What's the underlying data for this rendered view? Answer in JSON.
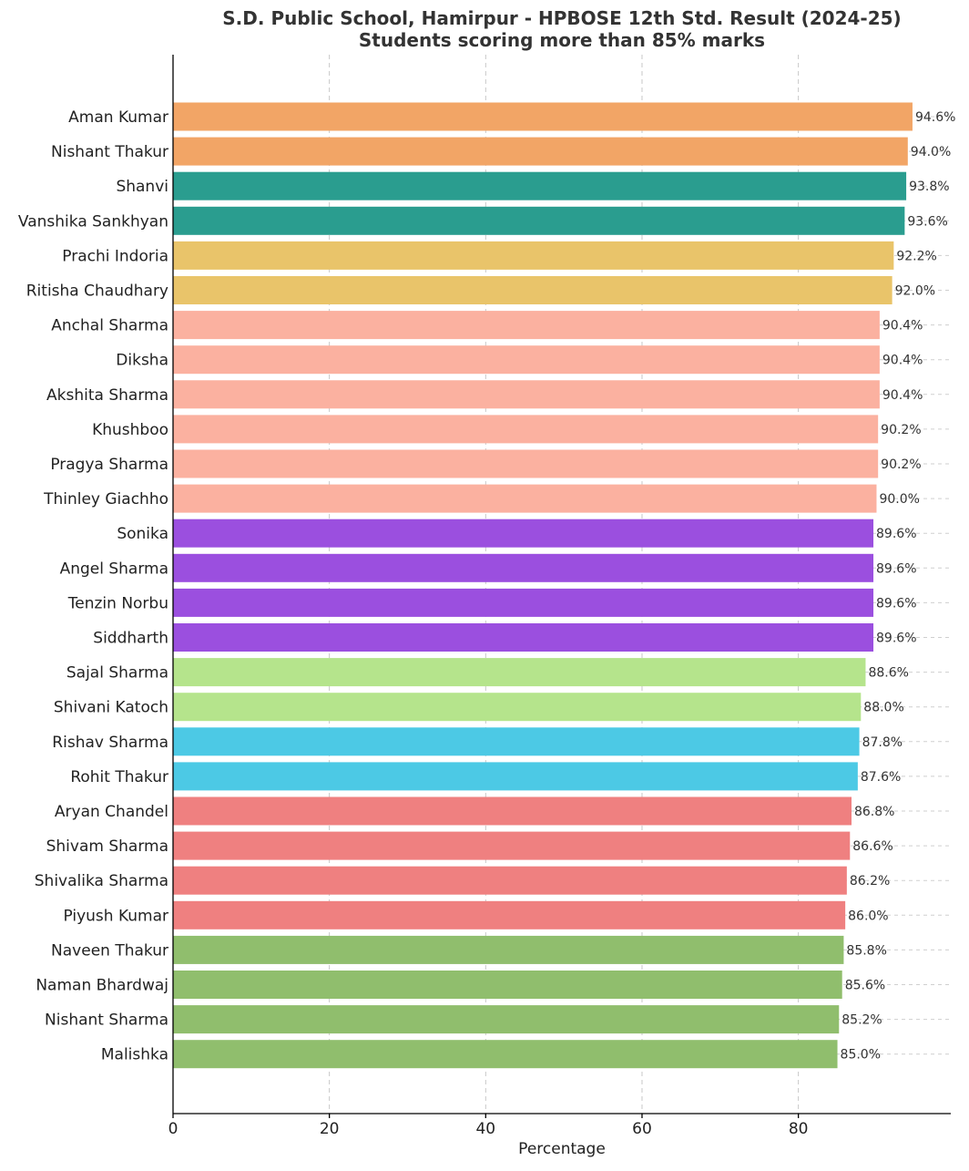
{
  "chart_data": {
    "type": "bar",
    "orientation": "horizontal",
    "title": "S.D. Public School, Hamirpur - HPBOSE 12th Std. Result (2024-25)",
    "subtitle": "Students scoring more than 85% marks",
    "xlabel": "Percentage",
    "ylabel": "",
    "xlim": [
      0,
      99.5
    ],
    "xticks": [
      0,
      20,
      40,
      60,
      80
    ],
    "grid": true,
    "value_suffix": "%",
    "categories": [
      "Aman Kumar",
      "Nishant Thakur",
      "Shanvi",
      "Vanshika Sankhyan",
      "Prachi Indoria",
      "Ritisha Chaudhary",
      "Anchal Sharma",
      "Diksha",
      "Akshita Sharma",
      "Khushboo",
      "Pragya Sharma",
      "Thinley Giachho",
      "Sonika",
      "Angel Sharma",
      "Tenzin Norbu",
      "Siddharth",
      "Sajal Sharma",
      "Shivani Katoch",
      "Rishav Sharma",
      "Rohit Thakur",
      "Aryan Chandel",
      "Shivam Sharma",
      "Shivalika Sharma",
      "Piyush Kumar",
      "Naveen Thakur",
      "Naman Bhardwaj",
      "Nishant Sharma",
      "Malishka"
    ],
    "values": [
      94.6,
      94.0,
      93.8,
      93.6,
      92.2,
      92.0,
      90.4,
      90.4,
      90.4,
      90.2,
      90.2,
      90.0,
      89.6,
      89.6,
      89.6,
      89.6,
      88.6,
      88.0,
      87.8,
      87.6,
      86.8,
      86.6,
      86.2,
      86.0,
      85.8,
      85.6,
      85.2,
      85.0
    ],
    "value_labels": [
      "94.6%",
      "94.0%",
      "93.8%",
      "93.6%",
      "92.2%",
      "92.0%",
      "90.4%",
      "90.4%",
      "90.4%",
      "90.2%",
      "90.2%",
      "90.0%",
      "89.6%",
      "89.6%",
      "89.6%",
      "89.6%",
      "88.6%",
      "88.0%",
      "87.8%",
      "87.6%",
      "86.8%",
      "86.6%",
      "86.2%",
      "86.0%",
      "85.8%",
      "85.6%",
      "85.2%",
      "85.0%"
    ],
    "colors": [
      "#f2a566",
      "#f2a566",
      "#2a9d8f",
      "#2a9d8f",
      "#e9c46a",
      "#e9c46a",
      "#fbb1a0",
      "#fbb1a0",
      "#fbb1a0",
      "#fbb1a0",
      "#fbb1a0",
      "#fbb1a0",
      "#9b4fdf",
      "#9b4fdf",
      "#9b4fdf",
      "#9b4fdf",
      "#b5e48c",
      "#b5e48c",
      "#4cc9e5",
      "#4cc9e5",
      "#ef8080",
      "#ef8080",
      "#ef8080",
      "#ef8080",
      "#90be6d",
      "#90be6d",
      "#90be6d",
      "#90be6d"
    ]
  }
}
